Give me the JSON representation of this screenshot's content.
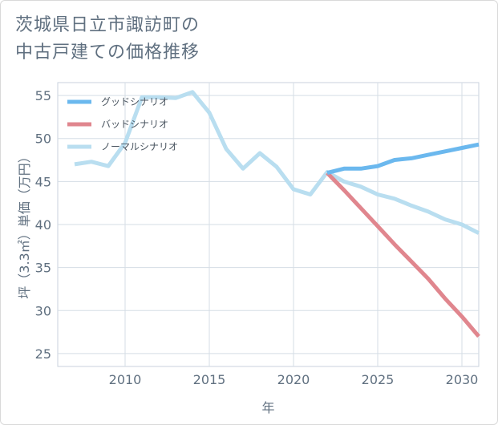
{
  "title_lines": [
    "茨城県日立市諏訪町の",
    "中古戸建ての価格推移"
  ],
  "chart_data": {
    "type": "line",
    "title": "茨城県日立市諏訪町の中古戸建ての価格推移",
    "xlabel": "年",
    "ylabel": "坪（3.3㎡）単価（万円）",
    "xlim": [
      2006,
      2031
    ],
    "ylim": [
      23.5,
      56.5
    ],
    "xticks": [
      2010,
      2015,
      2020,
      2025,
      2030
    ],
    "yticks": [
      25,
      30,
      35,
      40,
      45,
      50,
      55
    ],
    "grid": true,
    "legend_position": "top-left",
    "series": [
      {
        "name": "グッドシナリオ",
        "color": "#6bb8ee",
        "x": [
          2022,
          2023,
          2024,
          2025,
          2026,
          2027,
          2028,
          2029,
          2030,
          2031
        ],
        "y": [
          46.0,
          46.5,
          46.5,
          46.8,
          47.5,
          47.7,
          48.1,
          48.5,
          48.9,
          49.3
        ]
      },
      {
        "name": "バッドシナリオ",
        "color": "#e0868e",
        "x": [
          2022,
          2023,
          2024,
          2025,
          2026,
          2027,
          2028,
          2029,
          2030,
          2031
        ],
        "y": [
          46.0,
          44.0,
          41.9,
          39.8,
          37.7,
          35.7,
          33.7,
          31.4,
          29.3,
          27.0
        ]
      },
      {
        "name": "ノーマルシナリオ",
        "color": "#b9def0",
        "x": [
          2007,
          2008,
          2009,
          2010,
          2011,
          2012,
          2013,
          2014,
          2015,
          2016,
          2017,
          2018,
          2019,
          2020,
          2021,
          2022,
          2023,
          2024,
          2025,
          2026,
          2027,
          2028,
          2029,
          2030,
          2031
        ],
        "y": [
          47.0,
          47.3,
          46.8,
          49.5,
          54.8,
          54.8,
          54.7,
          55.4,
          53.0,
          48.8,
          46.5,
          48.3,
          46.7,
          44.1,
          43.5,
          46.1,
          45.0,
          44.4,
          43.5,
          43.0,
          42.2,
          41.5,
          40.6,
          40.0,
          39.0
        ]
      }
    ]
  }
}
